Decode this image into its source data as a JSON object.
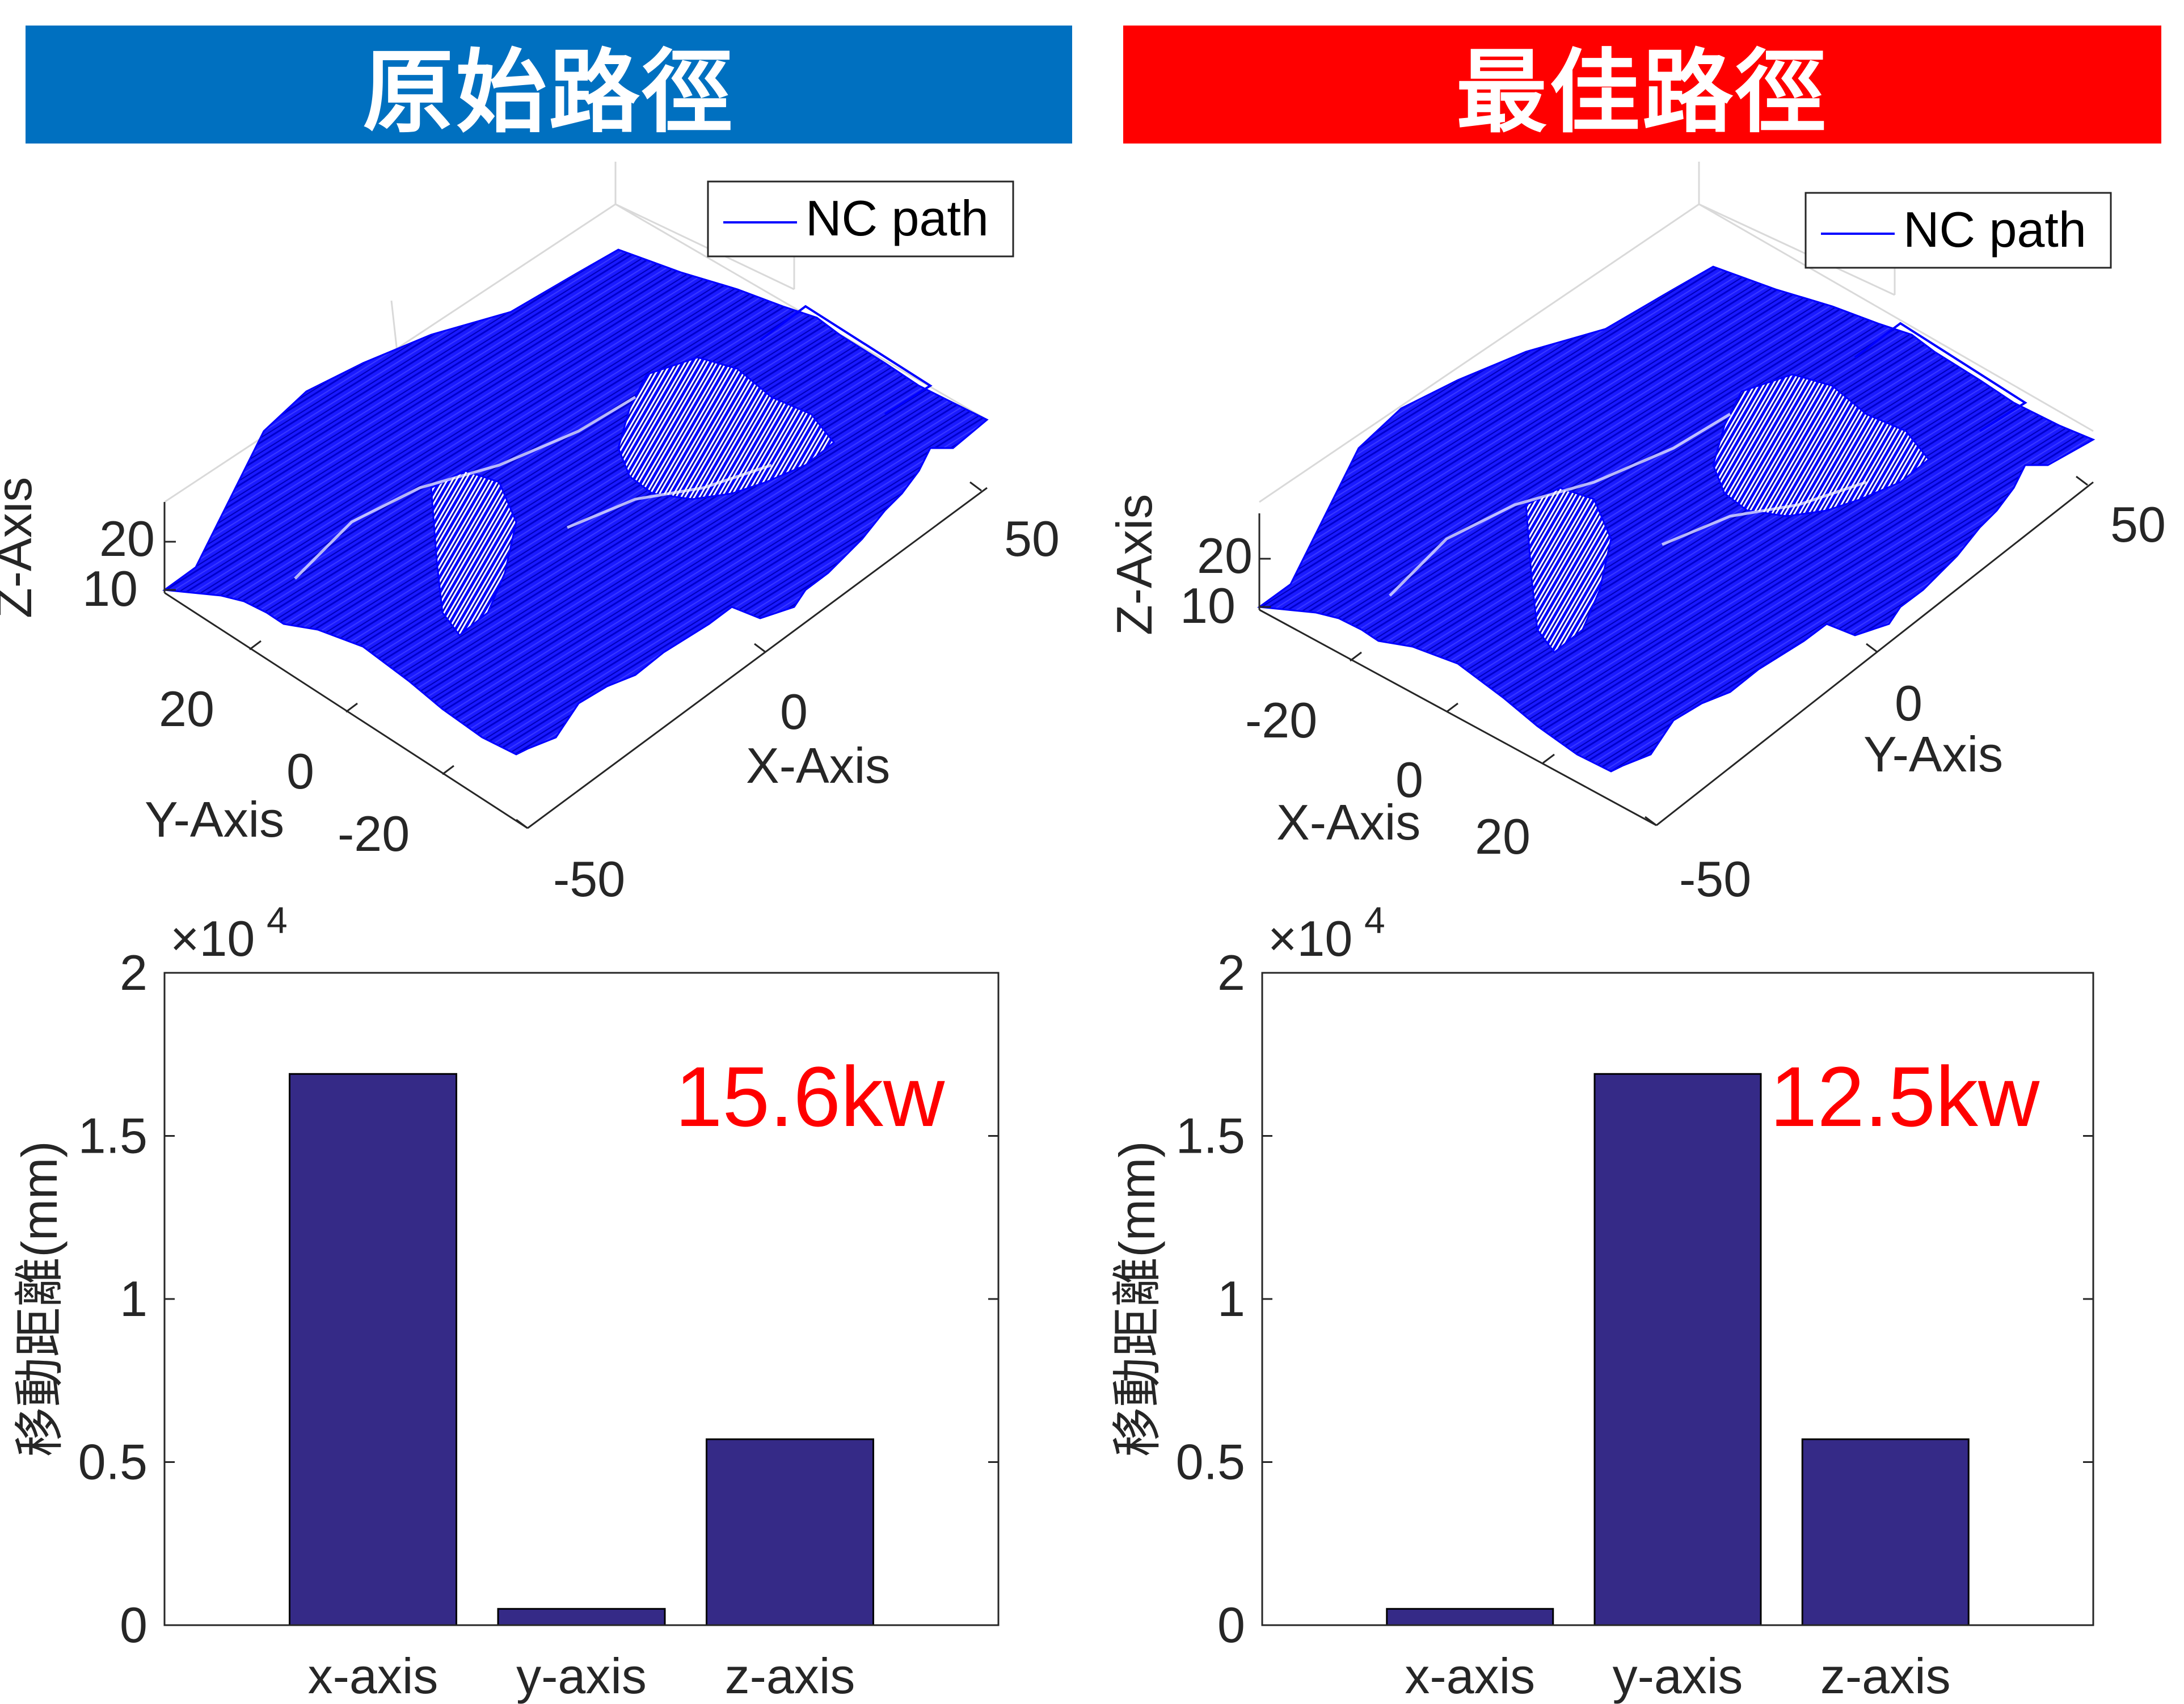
{
  "panels": {
    "left": {
      "banner": "原始路徑",
      "banner_color": "#0070C0"
    },
    "right": {
      "banner": "最佳路徑",
      "banner_color": "#FF0000"
    }
  },
  "path_plots": {
    "legend_label": "NC path",
    "left": {
      "zlabel": "Z-Axis",
      "ylabel": "Y-Axis",
      "xlabel": "X-Axis",
      "z_ticks": [
        "20",
        "10"
      ],
      "y_ticks": [
        "20",
        "0",
        "-20"
      ],
      "x_ticks": [
        "50",
        "0",
        "-50"
      ]
    },
    "right": {
      "zlabel": "Z-Axis",
      "xlabel": "X-Axis",
      "ylabel": "Y-Axis",
      "z_ticks": [
        "20",
        "10"
      ],
      "x_ticks": [
        "-20",
        "0",
        "20"
      ],
      "y_ticks": [
        "50",
        "0",
        "-50"
      ]
    },
    "line_color": "#0000FF"
  },
  "chart_data": [
    {
      "type": "bar",
      "categories": [
        "x-axis",
        "y-axis",
        "z-axis"
      ],
      "values": [
        16900,
        500,
        5700
      ],
      "ylabel": "移動距離(mm)",
      "ylim": [
        0,
        20000
      ],
      "y_ticks": [
        "0",
        "0.5",
        "1",
        "1.5",
        "2"
      ],
      "exponent_label": "×10",
      "exponent_power": "4",
      "annotation": "15.6kw",
      "bar_color": "#352A87",
      "annotation_color": "#FF0000"
    },
    {
      "type": "bar",
      "categories": [
        "x-axis",
        "y-axis",
        "z-axis"
      ],
      "values": [
        500,
        16900,
        5700
      ],
      "ylabel": "移動距離(mm)",
      "ylim": [
        0,
        20000
      ],
      "y_ticks": [
        "0",
        "0.5",
        "1",
        "1.5",
        "2"
      ],
      "exponent_label": "×10",
      "exponent_power": "4",
      "annotation": "12.5kw",
      "bar_color": "#352A87",
      "annotation_color": "#FF0000"
    }
  ]
}
